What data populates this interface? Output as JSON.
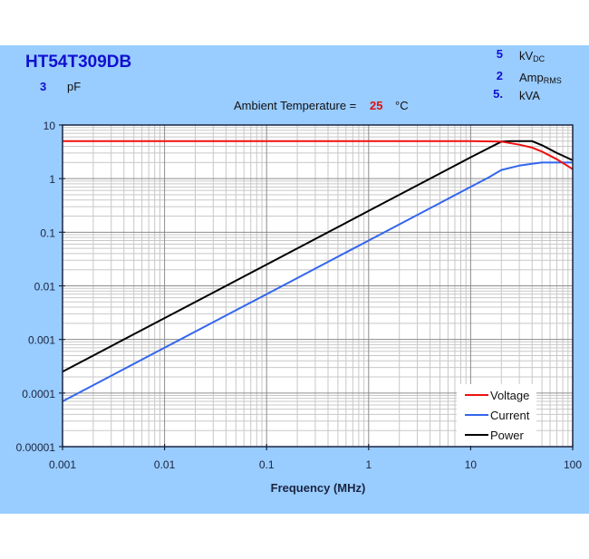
{
  "header": {
    "part_number": "HT54T309DB",
    "capacitance_value": "3",
    "capacitance_unit": "pF",
    "ambient_label": "Ambient Temperature =",
    "ambient_value": "25",
    "ambient_unit": "°C"
  },
  "specs": [
    {
      "value": "5",
      "unit_main": "kV",
      "unit_sub": "DC"
    },
    {
      "value": "2",
      "unit_main": "Amp",
      "unit_sub": "RMS"
    },
    {
      "value": "5.",
      "unit_main": "kVA",
      "unit_sub": ""
    }
  ],
  "colors": {
    "panel": "#99ccff",
    "title": "#1010d0",
    "voltage": "#ee1111",
    "current": "#3366ee",
    "power": "#000000"
  },
  "chart_data": {
    "type": "line",
    "xscale": "log",
    "yscale": "log",
    "xlabel": "Frequency (MHz)",
    "ylabel": "",
    "xlim": [
      0.001,
      100
    ],
    "ylim": [
      1e-05,
      10
    ],
    "xticks": [
      "0.001",
      "0.01",
      "0.1",
      "1",
      "10",
      "100"
    ],
    "xtick_values": [
      0.001,
      0.01,
      0.1,
      1,
      10,
      100
    ],
    "yticks": [
      "10",
      "1",
      "0.1",
      "0.01",
      "0.001",
      "0.0001",
      "0.00001"
    ],
    "ytick_values": [
      10,
      1,
      0.1,
      0.01,
      0.001,
      0.0001,
      1e-05
    ],
    "grid": true,
    "legend_position": "bottom-right",
    "series": [
      {
        "name": "Voltage",
        "color": "#ee1111",
        "x": [
          0.001,
          0.01,
          0.1,
          1,
          10,
          20,
          30,
          40,
          50,
          70,
          100
        ],
        "y": [
          5,
          5,
          5,
          5,
          5,
          4.9,
          4.3,
          3.8,
          3.2,
          2.3,
          1.5
        ]
      },
      {
        "name": "Current",
        "color": "#3366ee",
        "x": [
          0.001,
          0.01,
          0.1,
          1,
          10,
          15,
          20,
          30,
          40,
          50,
          70,
          100
        ],
        "y": [
          7e-05,
          0.0007,
          0.007,
          0.07,
          0.7,
          1.05,
          1.45,
          1.75,
          1.9,
          2.0,
          2.0,
          2.0
        ]
      },
      {
        "name": "Power",
        "color": "#000000",
        "x": [
          0.001,
          0.01,
          0.1,
          1,
          10,
          15,
          20,
          25,
          30,
          40,
          50,
          70,
          100
        ],
        "y": [
          0.00025,
          0.0025,
          0.025,
          0.25,
          2.5,
          3.7,
          4.9,
          5.0,
          5.0,
          5.0,
          4.2,
          3.0,
          2.2
        ]
      }
    ]
  }
}
